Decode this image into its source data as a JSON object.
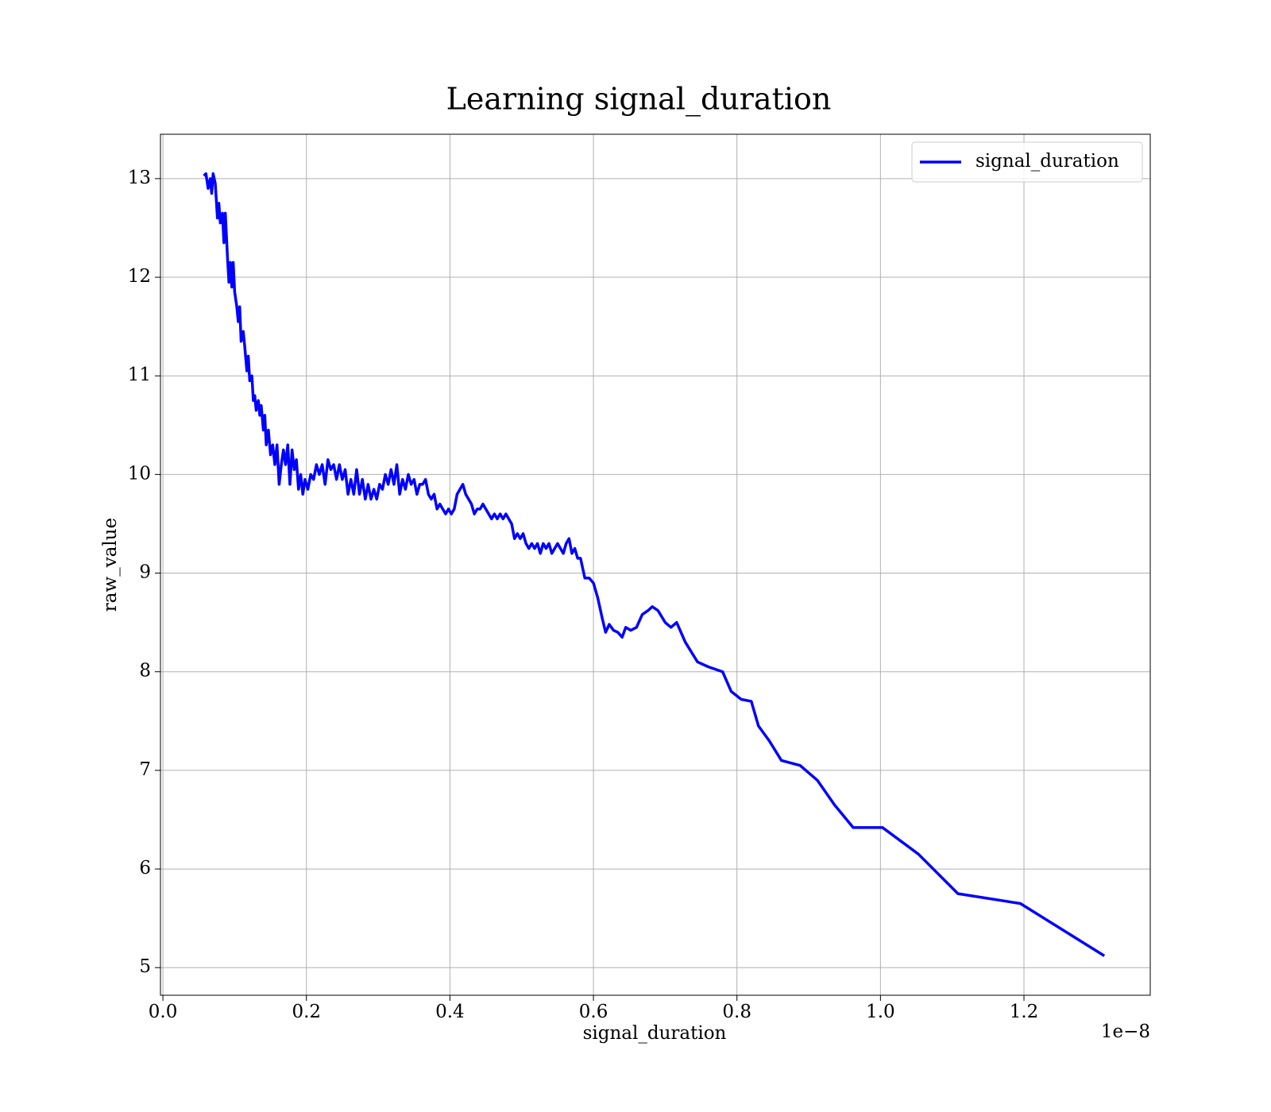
{
  "chart_data": {
    "type": "line",
    "title": "Learning signal_duration",
    "x_label": "signal_duration",
    "y_label": "raw_value",
    "x_offset_label": "1e−8",
    "x": [
      5.7e-10,
      6e-10,
      6.3e-10,
      6.6e-10,
      6.8e-10,
      7e-10,
      7.3e-10,
      7.6e-10,
      7.8e-10,
      8e-10,
      8.3e-10,
      8.5e-10,
      8.7e-10,
      9e-10,
      9.2e-10,
      9.4e-10,
      9.6e-10,
      9.8e-10,
      1e-09,
      1.03e-09,
      1.05e-09,
      1.07e-09,
      1.09e-09,
      1.12e-09,
      1.14e-09,
      1.17e-09,
      1.19e-09,
      1.21e-09,
      1.24e-09,
      1.26e-09,
      1.28e-09,
      1.3e-09,
      1.33e-09,
      1.35e-09,
      1.37e-09,
      1.4e-09,
      1.42e-09,
      1.44e-09,
      1.47e-09,
      1.5e-09,
      1.53e-09,
      1.56e-09,
      1.59e-09,
      1.62e-09,
      1.65e-09,
      1.68e-09,
      1.71e-09,
      1.74e-09,
      1.77e-09,
      1.8e-09,
      1.83e-09,
      1.86e-09,
      1.89e-09,
      1.92e-09,
      1.95e-09,
      1.98e-09,
      2.02e-09,
      2.06e-09,
      2.1e-09,
      2.14e-09,
      2.18e-09,
      2.22e-09,
      2.26e-09,
      2.3e-09,
      2.34e-09,
      2.38e-09,
      2.42e-09,
      2.46e-09,
      2.5e-09,
      2.54e-09,
      2.58e-09,
      2.62e-09,
      2.66e-09,
      2.7e-09,
      2.74e-09,
      2.78e-09,
      2.82e-09,
      2.86e-09,
      2.9e-09,
      2.94e-09,
      2.98e-09,
      3.02e-09,
      3.06e-09,
      3.1e-09,
      3.14e-09,
      3.18e-09,
      3.22e-09,
      3.26e-09,
      3.3e-09,
      3.34e-09,
      3.38e-09,
      3.42e-09,
      3.46e-09,
      3.5e-09,
      3.54e-09,
      3.58e-09,
      3.62e-09,
      3.66e-09,
      3.7e-09,
      3.74e-09,
      3.78e-09,
      3.82e-09,
      3.86e-09,
      3.9e-09,
      3.94e-09,
      3.98e-09,
      4.02e-09,
      4.06e-09,
      4.1e-09,
      4.14e-09,
      4.18e-09,
      4.22e-09,
      4.26e-09,
      4.3e-09,
      4.34e-09,
      4.38e-09,
      4.42e-09,
      4.46e-09,
      4.5e-09,
      4.54e-09,
      4.58e-09,
      4.62e-09,
      4.66e-09,
      4.7e-09,
      4.74e-09,
      4.78e-09,
      4.82e-09,
      4.86e-09,
      4.9e-09,
      4.94e-09,
      4.98e-09,
      5.02e-09,
      5.06e-09,
      5.1e-09,
      5.14e-09,
      5.18e-09,
      5.22e-09,
      5.26e-09,
      5.3e-09,
      5.34e-09,
      5.38e-09,
      5.42e-09,
      5.46e-09,
      5.5e-09,
      5.54e-09,
      5.58e-09,
      5.62e-09,
      5.66e-09,
      5.7e-09,
      5.74e-09,
      5.78e-09,
      5.82e-09,
      5.88e-09,
      5.94e-09,
      6e-09,
      6.06e-09,
      6.12e-09,
      6.17e-09,
      6.22e-09,
      6.28e-09,
      6.34e-09,
      6.4e-09,
      6.45e-09,
      6.52e-09,
      6.6e-09,
      6.68e-09,
      6.76e-09,
      6.82e-09,
      6.9e-09,
      7e-09,
      7.08e-09,
      7.16e-09,
      7.28e-09,
      7.45e-09,
      7.6e-09,
      7.8e-09,
      7.92e-09,
      8.06e-09,
      8.2e-09,
      8.3e-09,
      8.45e-09,
      8.62e-09,
      8.88e-09,
      9.12e-09,
      9.36e-09,
      9.62e-09,
      1.003e-08,
      1.053e-08,
      1.108e-08,
      1.195e-08,
      1.312e-08
    ],
    "series": [
      {
        "name": "signal_duration",
        "color": "#0000ff",
        "values": [
          13.03,
          13.05,
          12.9,
          13.0,
          12.85,
          13.05,
          12.95,
          12.6,
          12.75,
          12.55,
          12.65,
          12.35,
          12.65,
          12.2,
          11.95,
          12.15,
          11.9,
          12.15,
          11.85,
          11.7,
          11.55,
          11.7,
          11.35,
          11.45,
          11.3,
          11.05,
          11.2,
          10.95,
          11.0,
          10.75,
          10.8,
          10.65,
          10.75,
          10.6,
          10.7,
          10.45,
          10.6,
          10.3,
          10.45,
          10.2,
          10.3,
          10.1,
          10.3,
          9.9,
          10.1,
          10.25,
          10.1,
          10.3,
          9.9,
          10.25,
          10.05,
          10.15,
          9.85,
          10.0,
          9.8,
          9.95,
          9.85,
          10.0,
          9.95,
          10.1,
          10.0,
          10.1,
          9.9,
          10.15,
          10.05,
          10.1,
          9.95,
          10.1,
          9.95,
          10.05,
          9.8,
          9.95,
          9.8,
          10.05,
          9.8,
          9.95,
          9.75,
          9.9,
          9.75,
          9.85,
          9.75,
          9.9,
          9.85,
          10.0,
          9.9,
          10.05,
          9.9,
          10.1,
          9.8,
          9.95,
          9.85,
          10.0,
          9.9,
          9.95,
          9.8,
          9.9,
          9.9,
          9.95,
          9.8,
          9.75,
          9.8,
          9.65,
          9.7,
          9.65,
          9.6,
          9.65,
          9.6,
          9.65,
          9.8,
          9.85,
          9.9,
          9.8,
          9.75,
          9.7,
          9.6,
          9.65,
          9.65,
          9.7,
          9.65,
          9.6,
          9.55,
          9.6,
          9.55,
          9.6,
          9.55,
          9.6,
          9.55,
          9.5,
          9.35,
          9.4,
          9.35,
          9.4,
          9.3,
          9.25,
          9.3,
          9.25,
          9.3,
          9.2,
          9.3,
          9.25,
          9.3,
          9.2,
          9.25,
          9.3,
          9.25,
          9.2,
          9.3,
          9.35,
          9.2,
          9.25,
          9.15,
          9.15,
          8.95,
          8.95,
          8.9,
          8.75,
          8.55,
          8.4,
          8.48,
          8.42,
          8.4,
          8.35,
          8.45,
          8.42,
          8.45,
          8.58,
          8.62,
          8.66,
          8.62,
          8.5,
          8.45,
          8.5,
          8.3,
          8.1,
          8.05,
          8.0,
          7.8,
          7.72,
          7.7,
          7.45,
          7.3,
          7.1,
          7.05,
          6.9,
          6.65,
          6.42,
          6.42,
          6.15,
          5.75,
          5.65,
          5.12
        ]
      }
    ],
    "xlim": [
      -3.4e-11,
      1.376e-08
    ],
    "ylim": [
      4.72,
      13.45
    ],
    "xticks": [
      {
        "value": 0,
        "label": "0.0"
      },
      {
        "value": 2e-09,
        "label": "0.2"
      },
      {
        "value": 4e-09,
        "label": "0.4"
      },
      {
        "value": 6e-09,
        "label": "0.6"
      },
      {
        "value": 8e-09,
        "label": "0.8"
      },
      {
        "value": 1e-08,
        "label": "1.0"
      },
      {
        "value": 1.2e-08,
        "label": "1.2"
      }
    ],
    "yticks": [
      5,
      6,
      7,
      8,
      9,
      10,
      11,
      12,
      13
    ],
    "grid": true,
    "legend": "upper right"
  }
}
